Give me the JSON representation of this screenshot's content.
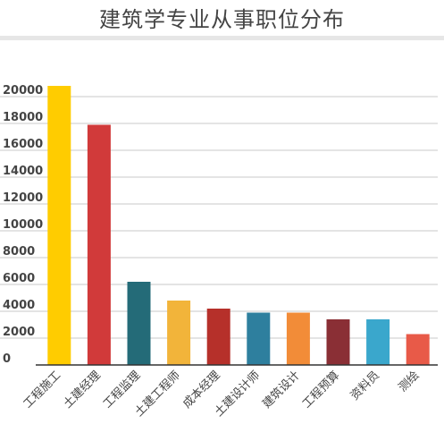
{
  "chart_data": {
    "type": "bar",
    "title": "建筑学专业从事职位分布",
    "xlabel": "",
    "ylabel": "",
    "ylim": [
      0,
      22000
    ],
    "yticks": [
      0,
      2000,
      4000,
      6000,
      8000,
      10000,
      12000,
      14000,
      16000,
      18000,
      20000
    ],
    "grid": true,
    "categories": [
      "工程施工",
      "土建经理",
      "工程监理",
      "土建工程师",
      "成本经理",
      "土建设计师",
      "建筑设计",
      "工程预算",
      "资料员",
      "测绘"
    ],
    "values": [
      20800,
      17900,
      6200,
      4800,
      4200,
      3900,
      3900,
      3400,
      3400,
      2300
    ],
    "colors": [
      "#ffcc00",
      "#d13a3a",
      "#246b78",
      "#f2b43a",
      "#b6302a",
      "#2e7f9e",
      "#f28c38",
      "#8a2f35",
      "#3aa7cc",
      "#e85a48"
    ]
  }
}
